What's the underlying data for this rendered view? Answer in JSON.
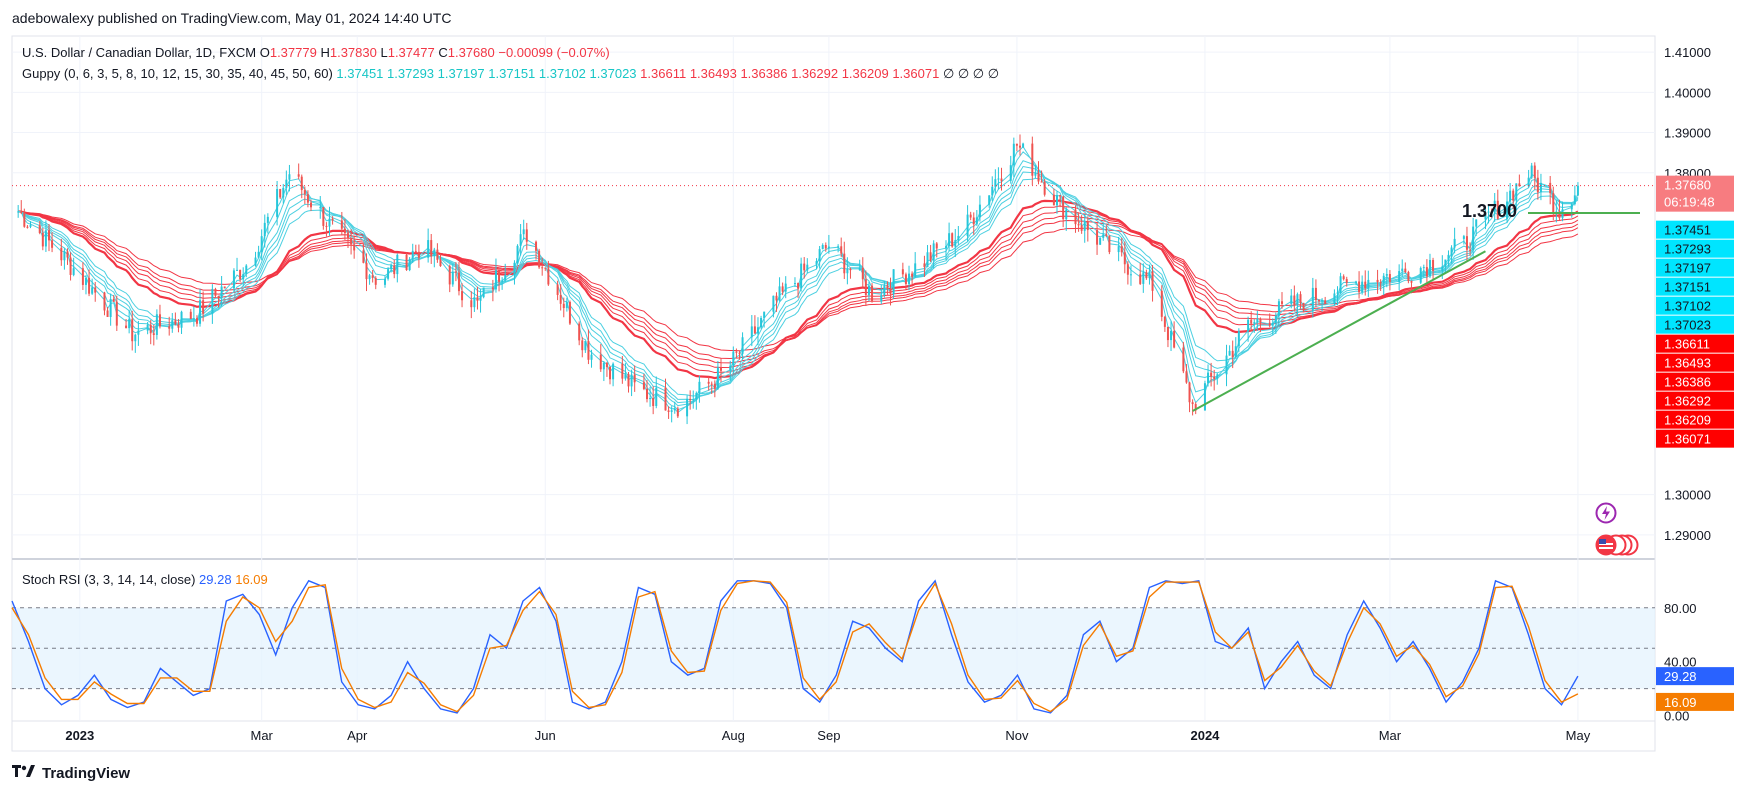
{
  "publisher": "adebowalexy published on TradingView.com, May 01, 2024 14:40 UTC",
  "legend": {
    "symbol": "U.S. Dollar / Canadian Dollar, 1D, FXCM",
    "o_label": "O",
    "o": "1.37779",
    "h_label": "H",
    "h": "1.37830",
    "l_label": "L",
    "l": "1.37477",
    "c_label": "C",
    "c": "1.37680",
    "change": "−0.00099 (−0.07%)",
    "guppy_label": "Guppy (0, 6, 3, 5, 8, 10, 12, 15, 30, 35, 40, 45, 50, 60)",
    "guppy_fast": [
      "1.37451",
      "1.37293",
      "1.37197",
      "1.37151",
      "1.37102",
      "1.37023"
    ],
    "guppy_slow": [
      "1.36611",
      "1.36493",
      "1.36386",
      "1.36292",
      "1.36209",
      "1.36071"
    ],
    "guppy_na": "∅ ∅ ∅ ∅"
  },
  "annotation_level": "1.3700",
  "current_price": "1.37680",
  "countdown": "06:19:48",
  "rsi_legend": {
    "label": "Stoch RSI (3, 3, 14, 14, close)",
    "k": "29.28",
    "d": "16.09"
  },
  "footer": {
    "brand": "TradingView",
    "logo": "tradingview-logo-icon"
  },
  "icons": {
    "lightning": "lightning-icon",
    "flag": "us-flag-icon"
  },
  "colors": {
    "bull": "#26c6da",
    "bear": "#ef5350",
    "fast_ema": "#4dd0e1",
    "slow_ema": "#f23645",
    "k_line": "#2962ff",
    "d_line": "#f57c00",
    "trendline": "#4caf50",
    "price_line": "#f23645"
  },
  "chart_data": [
    {
      "type": "candlestick",
      "title": "U.S. Dollar / Canadian Dollar, 1D, FXCM",
      "x_ticks": [
        "2023",
        "Mar",
        "Apr",
        "Jun",
        "Aug",
        "Sep",
        "Nov",
        "2024",
        "Mar",
        "May"
      ],
      "y_ticks": [
        "1.41000",
        "1.40000",
        "1.39000",
        "1.38000",
        "1.30000",
        "1.29000"
      ],
      "ylim": [
        1.284,
        1.414
      ],
      "price_scale_labels": [
        "1.37680",
        "06:19:48",
        "1.37451",
        "1.37293",
        "1.37197",
        "1.37151",
        "1.37102",
        "1.37023",
        "1.36611",
        "1.36493",
        "1.36386",
        "1.36292",
        "1.36209",
        "1.36071"
      ],
      "close_path": [
        [
          "2022-12-10",
          1.372
        ],
        [
          "2022-12-28",
          1.358
        ],
        [
          "2023-01-18",
          1.34
        ],
        [
          "2023-02-08",
          1.345
        ],
        [
          "2023-02-25",
          1.358
        ],
        [
          "2023-03-10",
          1.38
        ],
        [
          "2023-03-25",
          1.365
        ],
        [
          "2023-04-08",
          1.353
        ],
        [
          "2023-04-22",
          1.362
        ],
        [
          "2023-05-10",
          1.347
        ],
        [
          "2023-05-26",
          1.365
        ],
        [
          "2023-06-15",
          1.336
        ],
        [
          "2023-07-01",
          1.326
        ],
        [
          "2023-07-15",
          1.322
        ],
        [
          "2023-07-30",
          1.331
        ],
        [
          "2023-08-15",
          1.348
        ],
        [
          "2023-09-01",
          1.362
        ],
        [
          "2023-09-15",
          1.35
        ],
        [
          "2023-09-30",
          1.357
        ],
        [
          "2023-10-15",
          1.366
        ],
        [
          "2023-11-01",
          1.387
        ],
        [
          "2023-11-15",
          1.372
        ],
        [
          "2023-12-01",
          1.361
        ],
        [
          "2023-12-15",
          1.352
        ],
        [
          "2023-12-28",
          1.322
        ],
        [
          "2024-01-15",
          1.342
        ],
        [
          "2024-02-01",
          1.348
        ],
        [
          "2024-02-20",
          1.353
        ],
        [
          "2024-03-10",
          1.356
        ],
        [
          "2024-03-25",
          1.362
        ],
        [
          "2024-04-15",
          1.38
        ],
        [
          "2024-04-25",
          1.371
        ],
        [
          "2024-05-01",
          1.3768
        ]
      ],
      "support_level": 1.37,
      "trendline": [
        [
          "2023-12-28",
          1.3208
        ],
        [
          "2024-04-01",
          1.3605
        ]
      ],
      "guppy_fast_current": [
        1.37451,
        1.37293,
        1.37197,
        1.37151,
        1.37102,
        1.37023
      ],
      "guppy_slow_current": [
        1.36611,
        1.36493,
        1.36386,
        1.36292,
        1.36209,
        1.36071
      ]
    },
    {
      "type": "line",
      "title": "Stoch RSI (3, 3, 14, 14, close)",
      "y_ticks": [
        "80.00",
        "40.00",
        "0.00"
      ],
      "ylim": [
        -4,
        108
      ],
      "bands": [
        20,
        50,
        80
      ],
      "series": [
        {
          "name": "K",
          "current": 29.28,
          "values": [
            85,
            55,
            20,
            8,
            15,
            30,
            12,
            6,
            10,
            35,
            25,
            15,
            20,
            85,
            90,
            75,
            45,
            80,
            100,
            95,
            25,
            8,
            5,
            15,
            40,
            20,
            5,
            2,
            20,
            60,
            50,
            85,
            95,
            70,
            10,
            5,
            10,
            40,
            95,
            90,
            40,
            30,
            35,
            85,
            100,
            100,
            98,
            80,
            20,
            10,
            30,
            70,
            65,
            50,
            40,
            85,
            100,
            60,
            25,
            10,
            15,
            30,
            5,
            2,
            15,
            60,
            70,
            40,
            50,
            95,
            100,
            98,
            100,
            55,
            50,
            65,
            20,
            40,
            55,
            30,
            20,
            60,
            85,
            65,
            40,
            55,
            35,
            10,
            25,
            50,
            100,
            95,
            60,
            20,
            8,
            29.28
          ]
        },
        {
          "name": "D",
          "current": 16.09,
          "values": [
            80,
            60,
            28,
            12,
            12,
            25,
            16,
            9,
            9,
            28,
            28,
            18,
            18,
            70,
            88,
            80,
            55,
            70,
            95,
            97,
            35,
            12,
            6,
            10,
            32,
            24,
            8,
            3,
            15,
            50,
            52,
            78,
            92,
            75,
            18,
            6,
            8,
            32,
            88,
            92,
            48,
            32,
            33,
            78,
            98,
            100,
            99,
            84,
            28,
            12,
            25,
            62,
            68,
            54,
            42,
            78,
            98,
            68,
            30,
            12,
            13,
            26,
            9,
            3,
            12,
            52,
            68,
            44,
            48,
            88,
            99,
            99,
            99,
            62,
            50,
            62,
            26,
            36,
            52,
            33,
            22,
            54,
            80,
            68,
            44,
            52,
            38,
            14,
            22,
            46,
            95,
            96,
            66,
            26,
            10,
            16.09
          ]
        }
      ]
    }
  ]
}
